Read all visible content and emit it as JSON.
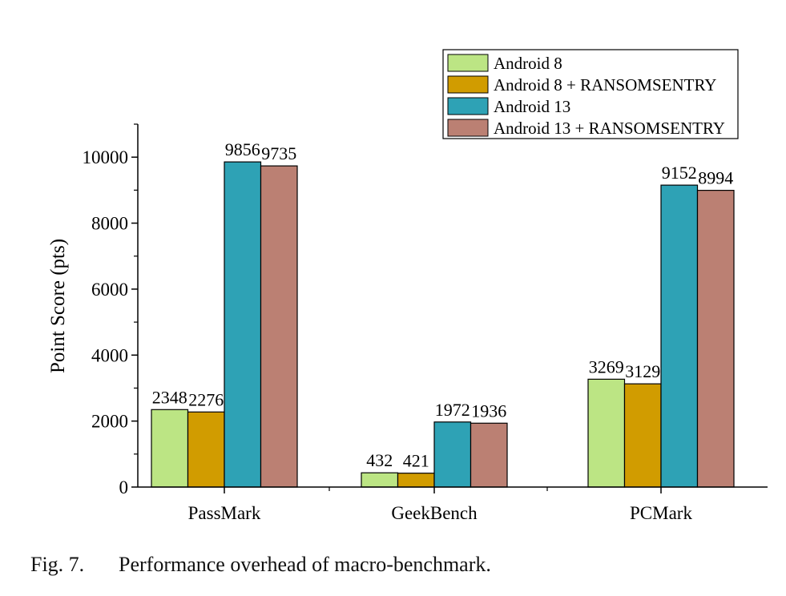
{
  "chart_data": {
    "type": "bar",
    "categories": [
      "PassMark",
      "GeekBench",
      "PCMark"
    ],
    "series": [
      {
        "name": "Android 8",
        "values": [
          2348,
          432,
          3269
        ],
        "color": "#bce584"
      },
      {
        "name": "Android 8 + RANSOMSENTRY",
        "values": [
          2276,
          421,
          3129
        ],
        "color": "#d19c00"
      },
      {
        "name": "Android 13",
        "values": [
          9856,
          1972,
          9152
        ],
        "color": "#2ea2b5"
      },
      {
        "name": "Android 13 + RANSOMSENTRY",
        "values": [
          9735,
          1936,
          8994
        ],
        "color": "#bb8073"
      }
    ],
    "data_labels": [
      [
        "2348",
        "432",
        "3269"
      ],
      [
        "2276",
        "421",
        "3129"
      ],
      [
        "9856",
        "1972",
        "9152"
      ],
      [
        "9735",
        "1936",
        "8994"
      ]
    ],
    "ylabel": "Point Score (pts)",
    "xlabel": "",
    "ylim": [
      0,
      11000
    ],
    "yticks": [
      0,
      2000,
      4000,
      6000,
      8000,
      10000
    ],
    "ytick_labels": [
      "0",
      "2000",
      "4000",
      "6000",
      "8000",
      "10000"
    ],
    "grid": false,
    "legend_position": "top-right"
  },
  "caption": {
    "number": "Fig. 7.",
    "text": "Performance overhead of macro-benchmark."
  }
}
